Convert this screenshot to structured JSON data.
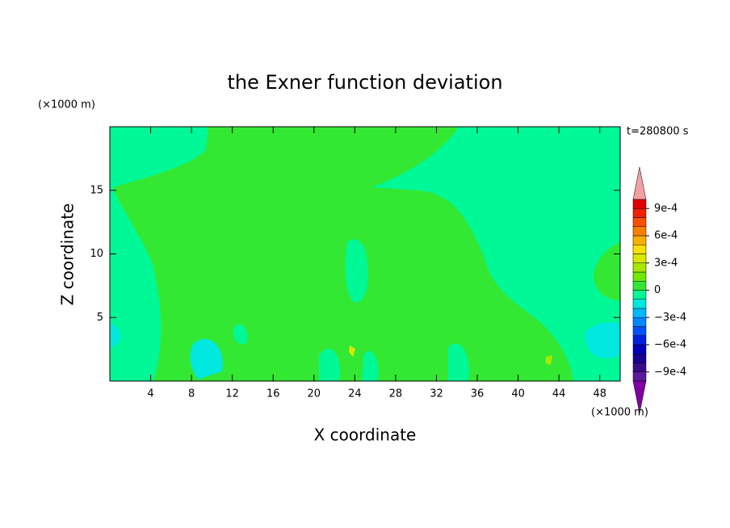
{
  "chart_data": {
    "type": "contour",
    "title": "the Exner function deviation",
    "x_label": "X coordinate",
    "y_label": "Z coordinate",
    "x_unit": "(×1000 m)",
    "y_unit": "(×1000 m)",
    "time_label": "t=280800 s",
    "xlim": [
      0,
      50
    ],
    "xticks": [
      4,
      8,
      12,
      16,
      20,
      24,
      28,
      32,
      36,
      40,
      44,
      48
    ],
    "ylim": [
      0,
      20
    ],
    "yticks": [
      5,
      10,
      15
    ],
    "colorbar": {
      "clim": [
        -0.001,
        0.001
      ],
      "ticks": [
        {
          "value": 0.0009,
          "label": "9e-4"
        },
        {
          "value": 0.0006,
          "label": "6e-4"
        },
        {
          "value": 0.0003,
          "label": "3e-4"
        },
        0,
        {
          "value": -0.0003,
          "label": "−3e-4"
        },
        {
          "value": -0.0006,
          "label": "−6e-4"
        },
        {
          "value": -0.0009,
          "label": "−9e-4"
        }
      ],
      "colors": [
        "#5a1a9a",
        "#3a0a8a",
        "#1a0090",
        "#0000b8",
        "#0020dc",
        "#0050ff",
        "#0088ff",
        "#00b8ff",
        "#00e8e0",
        "#00f896",
        "#33e833",
        "#70e800",
        "#a8e800",
        "#d8e800",
        "#f8e000",
        "#f8b000",
        "#f88000",
        "#f85000",
        "#f02000",
        "#e00000"
      ],
      "over_color": "#f4a0a0",
      "under_color": "#8000a0"
    }
  }
}
